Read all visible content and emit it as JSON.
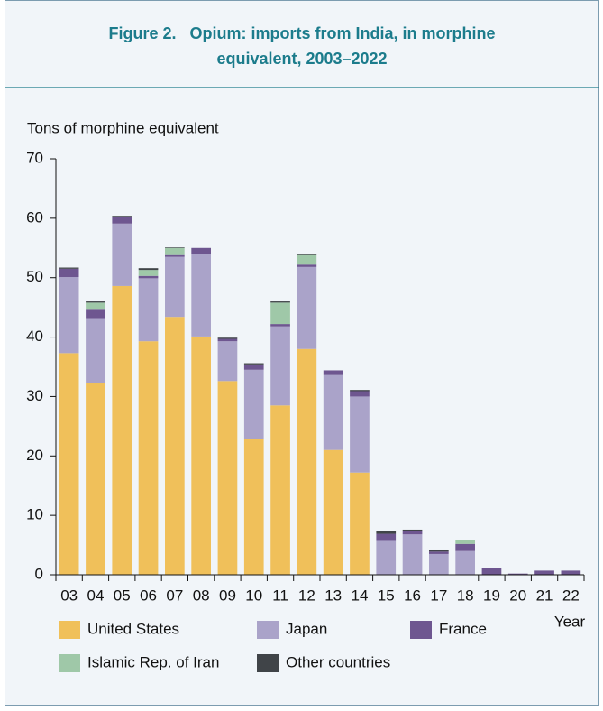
{
  "chart_data": {
    "type": "stacked_bar",
    "title_lines": [
      "Figure 2.   Opium: imports from India, in morphine",
      "equivalent, 2003–2022"
    ],
    "y_label": "Tons of morphine equivalent",
    "x_label": "Year",
    "categories": [
      "03",
      "04",
      "05",
      "06",
      "07",
      "08",
      "09",
      "10",
      "11",
      "12",
      "13",
      "14",
      "15",
      "16",
      "17",
      "18",
      "19",
      "20",
      "21",
      "22"
    ],
    "series": [
      {
        "name": "United States",
        "color": "#f0c05a",
        "values": [
          37.3,
          32.2,
          48.6,
          39.3,
          43.4,
          40.1,
          32.6,
          22.9,
          28.5,
          38.0,
          21.0,
          17.2,
          0,
          0,
          0,
          0,
          0,
          0,
          0,
          0
        ]
      },
      {
        "name": "Japan",
        "color": "#aaa3c9",
        "values": [
          12.8,
          11.0,
          10.5,
          10.6,
          10.1,
          13.9,
          6.7,
          11.6,
          13.3,
          13.8,
          12.6,
          12.8,
          5.7,
          6.8,
          3.5,
          4.0,
          0,
          0,
          0,
          0
        ]
      },
      {
        "name": "France",
        "color": "#6e5690",
        "values": [
          1.4,
          1.4,
          1.1,
          0.4,
          0.3,
          1.0,
          0.4,
          0.9,
          0.4,
          0.4,
          0.8,
          0.9,
          1.2,
          0.5,
          0.4,
          1.2,
          1.2,
          0.2,
          0.7,
          0.7
        ]
      },
      {
        "name": "Islamic Rep. of Iran",
        "color": "#9fc8a8",
        "values": [
          0,
          1.2,
          0,
          1.0,
          1.2,
          0,
          0,
          0,
          3.6,
          1.6,
          0,
          0,
          0,
          0,
          0,
          0.6,
          0,
          0,
          0,
          0
        ]
      },
      {
        "name": "Other countries",
        "color": "#404448",
        "values": [
          0.2,
          0.2,
          0.2,
          0.3,
          0.1,
          0,
          0.2,
          0.2,
          0.2,
          0.2,
          0,
          0.2,
          0.5,
          0.3,
          0.2,
          0.1,
          0,
          0,
          0,
          0
        ]
      }
    ],
    "ylim": [
      0,
      70
    ],
    "yticks": [
      0,
      10,
      20,
      30,
      40,
      50,
      60,
      70
    ]
  }
}
